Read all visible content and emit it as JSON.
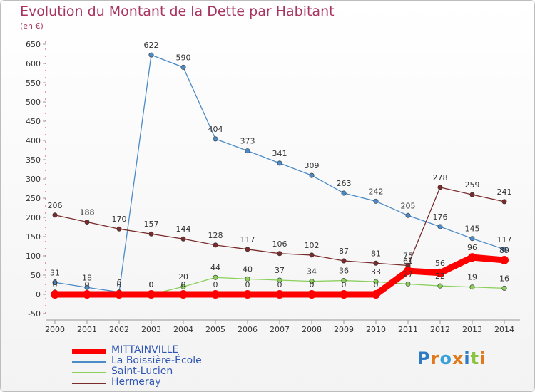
{
  "title": "Evolution du Montant de la Dette par Habitant",
  "unit": "(en €)",
  "logo": "Proxiti",
  "chart_data": {
    "type": "line",
    "title": "Evolution du Montant de la Dette par Habitant",
    "ylabel": "(en €)",
    "xlabel": "",
    "ylim": [
      -50,
      650
    ],
    "yticks": [
      -50,
      0,
      50,
      100,
      150,
      200,
      250,
      300,
      350,
      400,
      450,
      500,
      550,
      600,
      650
    ],
    "x": [
      "2000",
      "2001",
      "2002",
      "2003",
      "2004",
      "2005",
      "2006",
      "2007",
      "2008",
      "2009",
      "2010",
      "2011",
      "2012",
      "2013",
      "2014"
    ],
    "grid": false,
    "legend_position": "bottom-left",
    "series": [
      {
        "name": "MITTAINVILLE",
        "color": "#ff0000",
        "values": [
          0,
          0,
          0,
          0,
          0,
          0,
          0,
          0,
          0,
          0,
          0,
          61,
          56,
          96,
          89
        ]
      },
      {
        "name": "La Boissière-École",
        "color": "#4b8bc8",
        "values": [
          31,
          18,
          6,
          622,
          590,
          404,
          373,
          341,
          309,
          263,
          242,
          205,
          176,
          145,
          117
        ]
      },
      {
        "name": "Saint-Lucien",
        "color": "#8ad05a",
        "values": [
          6,
          0,
          0,
          0,
          20,
          44,
          40,
          37,
          34,
          36,
          33,
          27,
          22,
          19,
          16
        ]
      },
      {
        "name": "Hermeray",
        "color": "#7a2b2b",
        "values": [
          206,
          188,
          170,
          157,
          144,
          128,
          117,
          106,
          102,
          87,
          81,
          75,
          278,
          259,
          241
        ]
      }
    ]
  }
}
